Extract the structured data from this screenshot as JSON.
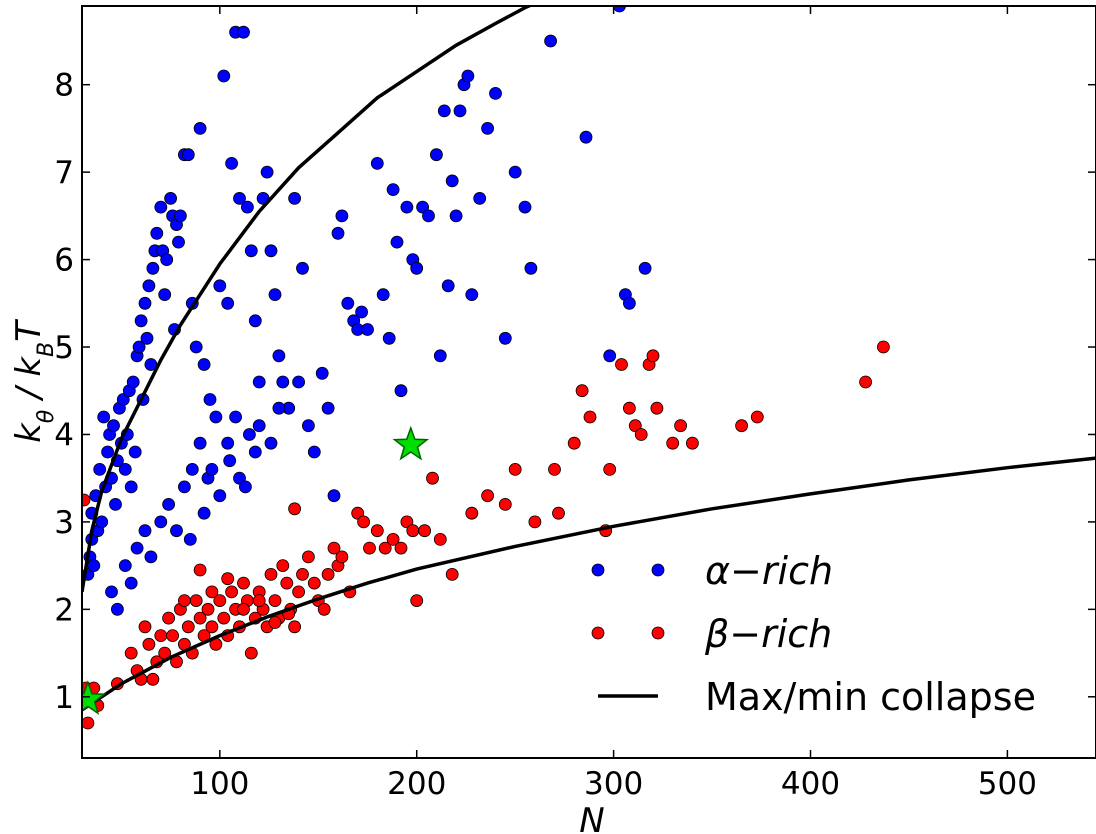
{
  "chart_data": {
    "type": "scatter",
    "xlabel": "N",
    "ylabel": "kθ / kBT",
    "xlim": [
      30,
      545
    ],
    "ylim": [
      0.3,
      8.9
    ],
    "xticks": [
      100,
      200,
      300,
      400,
      500
    ],
    "yticks": [
      1,
      2,
      3,
      4,
      5,
      6,
      7,
      8
    ],
    "grid": false,
    "legend_position": "bottom-right",
    "series": [
      {
        "name": "α−rich",
        "color": "#0000ff",
        "marker": "circle",
        "points": [
          [
            33,
            2.4
          ],
          [
            34,
            2.6
          ],
          [
            35,
            2.8
          ],
          [
            35,
            3.1
          ],
          [
            36,
            2.5
          ],
          [
            37,
            3.3
          ],
          [
            38,
            2.9
          ],
          [
            39,
            3.6
          ],
          [
            40,
            3.0
          ],
          [
            41,
            4.2
          ],
          [
            42,
            3.4
          ],
          [
            43,
            3.8
          ],
          [
            44,
            4.0
          ],
          [
            45,
            3.5
          ],
          [
            46,
            4.1
          ],
          [
            47,
            3.2
          ],
          [
            48,
            3.7
          ],
          [
            49,
            4.3
          ],
          [
            50,
            3.9
          ],
          [
            51,
            4.4
          ],
          [
            52,
            3.6
          ],
          [
            53,
            4.0
          ],
          [
            54,
            4.5
          ],
          [
            55,
            3.4
          ],
          [
            56,
            4.6
          ],
          [
            57,
            3.8
          ],
          [
            58,
            4.9
          ],
          [
            59,
            5.0
          ],
          [
            60,
            5.3
          ],
          [
            61,
            4.4
          ],
          [
            62,
            5.5
          ],
          [
            63,
            5.1
          ],
          [
            64,
            5.7
          ],
          [
            65,
            4.8
          ],
          [
            66,
            5.9
          ],
          [
            67,
            6.1
          ],
          [
            68,
            6.3
          ],
          [
            70,
            6.6
          ],
          [
            71,
            6.1
          ],
          [
            72,
            5.6
          ],
          [
            73,
            6.0
          ],
          [
            75,
            6.7
          ],
          [
            76,
            6.5
          ],
          [
            77,
            5.2
          ],
          [
            78,
            6.4
          ],
          [
            79,
            6.2
          ],
          [
            80,
            6.5
          ],
          [
            82,
            7.2
          ],
          [
            84,
            7.2
          ],
          [
            86,
            5.5
          ],
          [
            88,
            5.0
          ],
          [
            90,
            7.5
          ],
          [
            92,
            4.8
          ],
          [
            95,
            4.4
          ],
          [
            98,
            4.2
          ],
          [
            100,
            5.7
          ],
          [
            102,
            8.1
          ],
          [
            104,
            5.5
          ],
          [
            106,
            7.1
          ],
          [
            108,
            8.6
          ],
          [
            110,
            6.7
          ],
          [
            112,
            8.6
          ],
          [
            114,
            6.6
          ],
          [
            116,
            6.1
          ],
          [
            118,
            5.3
          ],
          [
            120,
            4.6
          ],
          [
            122,
            6.7
          ],
          [
            124,
            7.0
          ],
          [
            126,
            6.1
          ],
          [
            128,
            5.6
          ],
          [
            130,
            4.9
          ],
          [
            132,
            4.6
          ],
          [
            135,
            4.3
          ],
          [
            138,
            6.7
          ],
          [
            140,
            4.6
          ],
          [
            142,
            5.9
          ],
          [
            145,
            4.1
          ],
          [
            148,
            3.8
          ],
          [
            152,
            4.7
          ],
          [
            155,
            4.3
          ],
          [
            158,
            3.3
          ],
          [
            160,
            6.3
          ],
          [
            162,
            6.5
          ],
          [
            165,
            5.5
          ],
          [
            168,
            5.3
          ],
          [
            170,
            5.2
          ],
          [
            172,
            5.4
          ],
          [
            175,
            5.2
          ],
          [
            180,
            7.1
          ],
          [
            183,
            5.6
          ],
          [
            186,
            5.1
          ],
          [
            188,
            6.8
          ],
          [
            190,
            6.2
          ],
          [
            192,
            4.5
          ],
          [
            195,
            6.6
          ],
          [
            198,
            6.0
          ],
          [
            200,
            5.9
          ],
          [
            203,
            6.6
          ],
          [
            206,
            6.5
          ],
          [
            210,
            7.2
          ],
          [
            212,
            4.9
          ],
          [
            214,
            7.7
          ],
          [
            216,
            5.7
          ],
          [
            218,
            6.9
          ],
          [
            220,
            6.5
          ],
          [
            222,
            7.7
          ],
          [
            224,
            8.0
          ],
          [
            226,
            8.1
          ],
          [
            228,
            5.6
          ],
          [
            232,
            6.7
          ],
          [
            236,
            7.5
          ],
          [
            240,
            7.9
          ],
          [
            245,
            5.1
          ],
          [
            250,
            7.0
          ],
          [
            255,
            6.6
          ],
          [
            258,
            5.9
          ],
          [
            268,
            8.5
          ],
          [
            286,
            7.4
          ],
          [
            298,
            4.9
          ],
          [
            303,
            8.9
          ],
          [
            306,
            5.6
          ],
          [
            308,
            5.5
          ],
          [
            316,
            5.9
          ],
          [
            65,
            2.6
          ],
          [
            70,
            3.0
          ],
          [
            74,
            3.2
          ],
          [
            78,
            2.9
          ],
          [
            82,
            3.4
          ],
          [
            86,
            3.6
          ],
          [
            90,
            3.9
          ],
          [
            94,
            3.5
          ],
          [
            100,
            3.3
          ],
          [
            105,
            3.7
          ],
          [
            110,
            3.5
          ],
          [
            115,
            4.0
          ],
          [
            118,
            3.8
          ],
          [
            45,
            2.2
          ],
          [
            48,
            2.0
          ],
          [
            52,
            2.5
          ],
          [
            55,
            2.3
          ],
          [
            58,
            2.7
          ],
          [
            62,
            2.9
          ],
          [
            85,
            2.8
          ],
          [
            92,
            3.1
          ],
          [
            96,
            3.6
          ],
          [
            104,
            3.9
          ],
          [
            108,
            4.2
          ],
          [
            113,
            3.4
          ],
          [
            120,
            4.1
          ],
          [
            126,
            3.9
          ],
          [
            130,
            4.3
          ]
        ]
      },
      {
        "name": "β−rich",
        "color": "#ff0000",
        "marker": "circle",
        "points": [
          [
            31,
            3.25
          ],
          [
            32,
            1.1
          ],
          [
            33,
            0.7
          ],
          [
            36,
            1.1
          ],
          [
            38,
            0.9
          ],
          [
            48,
            1.15
          ],
          [
            55,
            1.5
          ],
          [
            58,
            1.3
          ],
          [
            60,
            1.2
          ],
          [
            62,
            1.8
          ],
          [
            64,
            1.6
          ],
          [
            66,
            1.2
          ],
          [
            68,
            1.4
          ],
          [
            70,
            1.7
          ],
          [
            72,
            1.5
          ],
          [
            74,
            1.9
          ],
          [
            76,
            1.7
          ],
          [
            78,
            1.4
          ],
          [
            80,
            2.0
          ],
          [
            82,
            1.6
          ],
          [
            84,
            1.8
          ],
          [
            86,
            1.5
          ],
          [
            88,
            2.1
          ],
          [
            90,
            1.9
          ],
          [
            92,
            1.7
          ],
          [
            94,
            2.0
          ],
          [
            96,
            1.8
          ],
          [
            98,
            1.6
          ],
          [
            100,
            2.1
          ],
          [
            102,
            1.9
          ],
          [
            104,
            1.7
          ],
          [
            106,
            2.2
          ],
          [
            108,
            2.0
          ],
          [
            110,
            1.8
          ],
          [
            112,
            2.3
          ],
          [
            114,
            2.1
          ],
          [
            116,
            1.5
          ],
          [
            118,
            1.9
          ],
          [
            120,
            2.2
          ],
          [
            122,
            2.0
          ],
          [
            124,
            1.8
          ],
          [
            126,
            2.4
          ],
          [
            128,
            2.1
          ],
          [
            130,
            1.9
          ],
          [
            132,
            2.5
          ],
          [
            134,
            2.3
          ],
          [
            136,
            2.0
          ],
          [
            138,
            1.8
          ],
          [
            140,
            2.2
          ],
          [
            142,
            2.4
          ],
          [
            145,
            2.6
          ],
          [
            148,
            2.3
          ],
          [
            150,
            2.1
          ],
          [
            153,
            2.0
          ],
          [
            155,
            2.4
          ],
          [
            158,
            2.7
          ],
          [
            160,
            2.5
          ],
          [
            162,
            2.6
          ],
          [
            166,
            2.2
          ],
          [
            170,
            3.1
          ],
          [
            173,
            3.0
          ],
          [
            176,
            2.7
          ],
          [
            180,
            2.9
          ],
          [
            184,
            2.7
          ],
          [
            188,
            2.8
          ],
          [
            192,
            2.7
          ],
          [
            195,
            3.0
          ],
          [
            198,
            2.9
          ],
          [
            200,
            2.1
          ],
          [
            204,
            2.9
          ],
          [
            208,
            3.5
          ],
          [
            212,
            2.8
          ],
          [
            218,
            2.4
          ],
          [
            228,
            3.1
          ],
          [
            236,
            3.3
          ],
          [
            245,
            3.2
          ],
          [
            250,
            3.6
          ],
          [
            260,
            3.0
          ],
          [
            270,
            3.6
          ],
          [
            272,
            3.1
          ],
          [
            280,
            3.9
          ],
          [
            284,
            4.5
          ],
          [
            288,
            4.2
          ],
          [
            296,
            2.9
          ],
          [
            298,
            3.6
          ],
          [
            304,
            4.8
          ],
          [
            308,
            4.3
          ],
          [
            311,
            4.1
          ],
          [
            314,
            4.0
          ],
          [
            318,
            4.8
          ],
          [
            320,
            4.9
          ],
          [
            322,
            4.3
          ],
          [
            330,
            3.9
          ],
          [
            334,
            4.1
          ],
          [
            340,
            3.9
          ],
          [
            365,
            4.1
          ],
          [
            373,
            4.2
          ],
          [
            428,
            4.6
          ],
          [
            437,
            5.0
          ],
          [
            138,
            3.15
          ],
          [
            90,
            2.45
          ],
          [
            82,
            2.1
          ],
          [
            96,
            2.2
          ],
          [
            104,
            2.35
          ],
          [
            112,
            2.0
          ],
          [
            120,
            2.1
          ],
          [
            128,
            1.85
          ],
          [
            135,
            1.95
          ]
        ]
      },
      {
        "name": "Max/min collapse",
        "color": "#000000",
        "marker": "line",
        "curves": [
          {
            "label": "upper",
            "points": [
              [
                30,
                2.2
              ],
              [
                35,
                2.9
              ],
              [
                40,
                3.35
              ],
              [
                50,
                3.95
              ],
              [
                60,
                4.4
              ],
              [
                70,
                4.85
              ],
              [
                80,
                5.25
              ],
              [
                90,
                5.6
              ],
              [
                100,
                5.95
              ],
              [
                120,
                6.55
              ],
              [
                140,
                7.05
              ],
              [
                160,
                7.45
              ],
              [
                180,
                7.85
              ],
              [
                200,
                8.15
              ],
              [
                220,
                8.45
              ],
              [
                240,
                8.7
              ],
              [
                255,
                8.88
              ],
              [
                262,
                8.95
              ]
            ]
          },
          {
            "label": "lower",
            "points": [
              [
                30,
                0.85
              ],
              [
                50,
                1.15
              ],
              [
                75,
                1.45
              ],
              [
                100,
                1.7
              ],
              [
                125,
                1.92
              ],
              [
                150,
                2.12
              ],
              [
                175,
                2.3
              ],
              [
                200,
                2.46
              ],
              [
                250,
                2.72
              ],
              [
                300,
                2.95
              ],
              [
                350,
                3.15
              ],
              [
                400,
                3.32
              ],
              [
                450,
                3.48
              ],
              [
                500,
                3.62
              ],
              [
                545,
                3.73
              ]
            ]
          }
        ]
      },
      {
        "name": "",
        "color": "#00dd00",
        "marker": "star",
        "points": [
          [
            33,
            0.97
          ],
          [
            197,
            3.88
          ]
        ]
      }
    ]
  }
}
